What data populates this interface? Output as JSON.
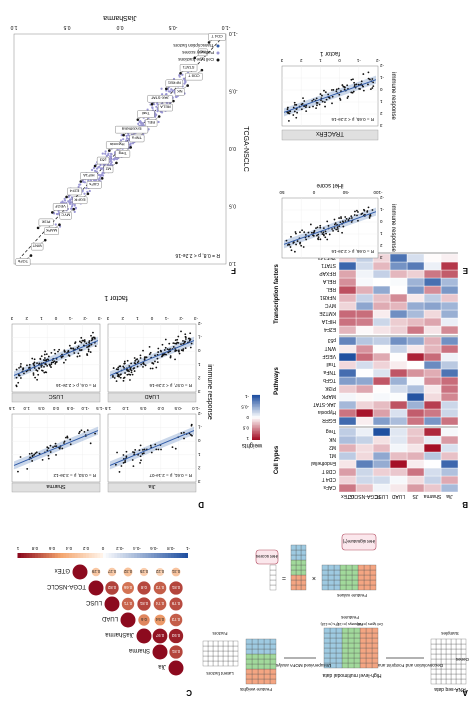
{
  "orientation": "page image shown rotated 180 degrees",
  "panels": {
    "A": {
      "letter": "A",
      "rnaseq_label": "RNA-seq data",
      "samples_label": "Samples",
      "genes_label": "Genes",
      "deconv_label": "Deconvolution and Footprint analysis",
      "features_label": "Features",
      "highlevel_label": "High-level multimodal data",
      "feature_groups": [
        "Cell types (n=10)",
        "Pathways (n=14)",
        "TFs (n=118)"
      ],
      "mofa_label": "Unsupervised MOFA analysis",
      "feature_weights_label": "Feature weights",
      "latent_factors_label": "Latent factors",
      "factors_label": "Factors",
      "feature_values_label": "Feature values",
      "iHet_signature_label": "iHet signature(*)",
      "iHet_scores_label": "iHet scores"
    },
    "B": {
      "letter": "B",
      "legend_title": "weights",
      "legend_ticks": [
        "1",
        "0.5",
        "0",
        "-0.5",
        "-1"
      ],
      "columns": [
        "Jia",
        "Sharma",
        "JS",
        "LUAD",
        "LUSC",
        "TCGA-NSCLC",
        "GTEx"
      ],
      "groups": [
        {
          "name": "Cell types",
          "rows": [
            "CAFs",
            "CD4 T",
            "CD8 T",
            "Endothelial",
            "M1",
            "M2",
            "NK",
            "Treg"
          ]
        },
        {
          "name": "Pathways",
          "rows": [
            "EGFR",
            "Hypoxia",
            "JAK-STAT",
            "MAPK",
            "PI3K",
            "TGFb",
            "TNFa",
            "Trail",
            "VEGF",
            "WNT",
            "p53"
          ]
        },
        {
          "name": "Transcription factors",
          "rows": [
            "E2F4",
            "HIF1A",
            "KMT2E",
            "MYC",
            "NFKB1",
            "REL",
            "RELA",
            "RFXAP",
            "STAT1",
            "ZNF143"
          ]
        }
      ]
    },
    "C": {
      "letter": "C",
      "labels": [
        "Jia",
        "Sharma",
        "JiaSharma",
        "LUAD",
        "LUSC",
        "TCGA-NSCLC",
        "GTEx"
      ],
      "scale_ticks": [
        "-1",
        "-0.8",
        "-0.6",
        "-0.4",
        "-0.2",
        "0",
        "0.2",
        "0.4",
        "0.6",
        "0.8",
        "1"
      ],
      "cells": [
        {
          "r": 1,
          "c": 0,
          "v": "0.81"
        },
        {
          "r": 2,
          "c": 0,
          "v": "0.93"
        },
        {
          "r": 2,
          "c": 1,
          "v": "0.97"
        },
        {
          "r": 3,
          "c": 0,
          "v": "0.73"
        },
        {
          "r": 3,
          "c": 1,
          "v": "0.54"
        },
        {
          "r": 3,
          "c": 2,
          "v": "0.6"
        },
        {
          "r": 4,
          "c": 0,
          "v": "0.79"
        },
        {
          "r": 4,
          "c": 1,
          "v": "0.74"
        },
        {
          "r": 4,
          "c": 2,
          "v": "0.81"
        },
        {
          "r": 4,
          "c": 3,
          "v": "0.71"
        },
        {
          "r": 5,
          "c": 0,
          "v": "0.81"
        },
        {
          "r": 5,
          "c": 1,
          "v": "0.73"
        },
        {
          "r": 5,
          "c": 2,
          "v": "0.8"
        },
        {
          "r": 5,
          "c": 3,
          "v": "0.66"
        },
        {
          "r": 5,
          "c": 4,
          "v": "0.82"
        },
        {
          "r": 6,
          "c": 0,
          "v": "0.31"
        },
        {
          "r": 6,
          "c": 1,
          "v": "0.22"
        },
        {
          "r": 6,
          "c": 2,
          "v": "0.25"
        },
        {
          "r": 6,
          "c": 3,
          "v": "0.32"
        },
        {
          "r": 6,
          "c": 4,
          "v": "0.27"
        },
        {
          "r": 6,
          "c": 5,
          "v": "0.29"
        }
      ]
    },
    "D": {
      "letter": "D",
      "xlabel": "factor 1",
      "ylabel": "immune response",
      "facets": [
        {
          "title": "Jia",
          "stat": "R = 0.61, p = 2.1e-07"
        },
        {
          "title": "Sharma",
          "stat": "R = 0.53, p = 3.3e-12"
        },
        {
          "title": "LUAD",
          "stat": "R = 0.57, p < 2.2e-16"
        },
        {
          "title": "LUSC",
          "stat": "R = 0.6, p < 2.2e-16"
        }
      ],
      "xticks_top": [
        "-1.5",
        "-1.0",
        "-0.5",
        "0.0",
        "0.5",
        "1.0",
        "1.5"
      ],
      "xticks_bottom": [
        "-3",
        "-2",
        "-1",
        "0",
        "1",
        "2",
        "3"
      ],
      "yticks": [
        "-2",
        "-1",
        "0",
        "1",
        "2",
        "3"
      ]
    },
    "E": {
      "letter": "E",
      "strip": "TRACERx",
      "top": {
        "stat": "R = 0.65, p < 2.2e-16",
        "xlabel": "factor 1",
        "ylabel": "immune response",
        "xticks": [
          "-2",
          "-1",
          "0",
          "1",
          "2",
          "3"
        ]
      },
      "bottom": {
        "stat": "R = 0.66, p < 2.2e-16",
        "xlabel": "iHet score",
        "ylabel": "immune response",
        "xticks": [
          "-100",
          "-50",
          "0",
          "50"
        ]
      }
    },
    "F": {
      "letter": "F",
      "xlabel": "JiaSharma",
      "ylabel": "TCGA-NSCLC",
      "stat": "R = 0.8, p < 2.2e-16",
      "xticks": [
        "-1.0",
        "-0.5",
        "0.0",
        "0.5",
        "1.0"
      ],
      "yticks": [
        "-1.0",
        "-0.5",
        "0.0",
        "0.5",
        "1.0"
      ],
      "legend": [
        "Cell type fractions",
        "Pathway scores",
        "Transcription factors"
      ],
      "labels": [
        "CD4 T",
        "CD8 T",
        "M1",
        "NK",
        "STAT1",
        "RELA",
        "NFKB1",
        "REL",
        "JAK-STAT",
        "TNFa",
        "Trail",
        "Treg",
        "Endothelial",
        "M2",
        "Hypoxia",
        "CAFs",
        "p53",
        "EGFR",
        "HIF1A",
        "MYC",
        "E2F4",
        "MAPK",
        "VEGF",
        "WNT",
        "PI3K",
        "TGFb"
      ]
    }
  }
}
